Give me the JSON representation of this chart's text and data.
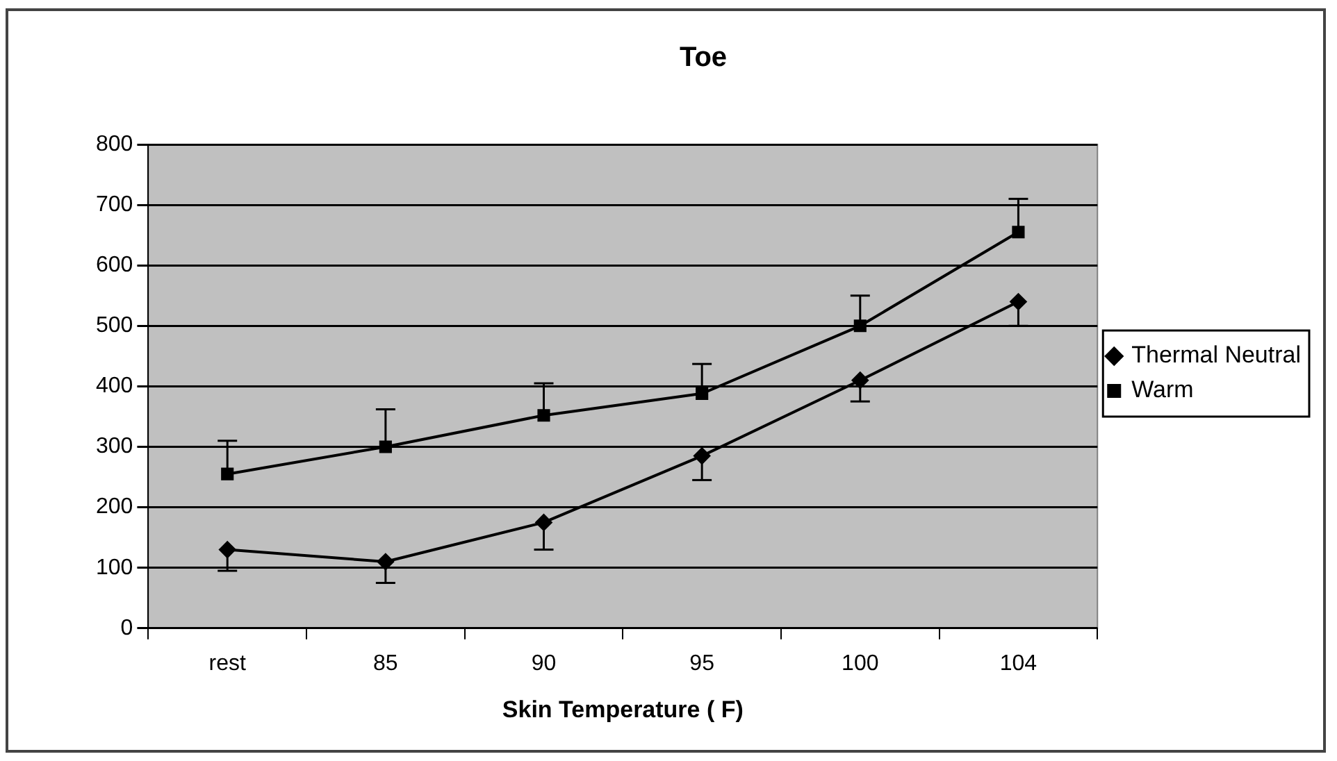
{
  "chart_data": {
    "type": "line",
    "title": "Toe",
    "xlabel": "Skin Temperature ( F)",
    "categories": [
      "rest",
      "85",
      "90",
      "95",
      "100",
      "104"
    ],
    "series": [
      {
        "name": "Thermal Neutral",
        "color": "#000000",
        "marker": "diamond",
        "values": [
          130,
          110,
          175,
          285,
          410,
          540
        ],
        "errors": [
          [
            95,
            130
          ],
          [
            75,
            110
          ],
          [
            130,
            175
          ],
          [
            245,
            285
          ],
          [
            375,
            410
          ],
          [
            500,
            540
          ]
        ]
      },
      {
        "name": "Warm",
        "color": "#000000",
        "marker": "square",
        "values": [
          255,
          300,
          352,
          388,
          500,
          655
        ],
        "errors": [
          [
            255,
            310
          ],
          [
            300,
            362
          ],
          [
            352,
            405
          ],
          [
            388,
            437
          ],
          [
            500,
            550
          ],
          [
            655,
            710
          ]
        ]
      }
    ],
    "ylim": [
      0,
      800
    ],
    "yticks": [
      0,
      100,
      200,
      300,
      400,
      500,
      600,
      700,
      800
    ],
    "grid": "y",
    "legend": "right",
    "line_style": "solid"
  }
}
